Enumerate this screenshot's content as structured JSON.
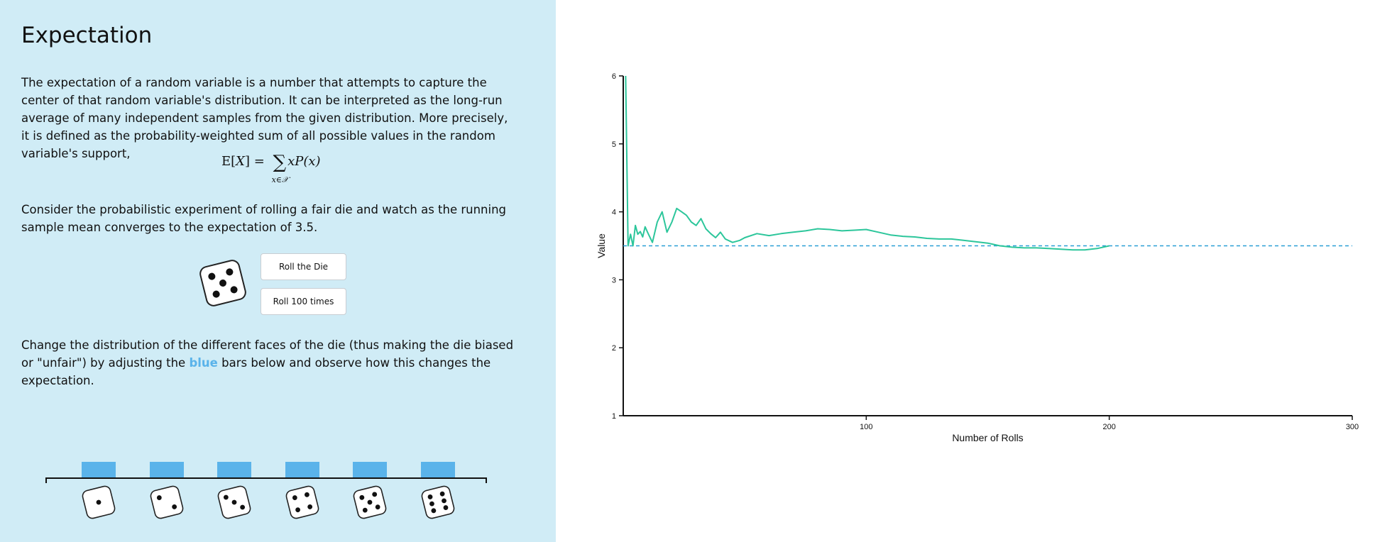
{
  "title": "Expectation",
  "intro": "The expectation of a random variable is a number that attempts to capture the center of that random variable's distribution. It can be interpreted as the long-run average of many independent samples from the given distribution. More precisely, it is defined as the probability-weighted sum of all possible values in the random variable's support,",
  "formula": {
    "lhs": "E[",
    "var": "X",
    "rhs_open": "] = ",
    "sum_symbol": "∑",
    "sum_sub": "x∈𝒳",
    "body": "xP(x)"
  },
  "consider": "Consider the probabilistic experiment of rolling a fair die and watch as the running sample mean converges to the expectation of 3.5.",
  "buttons": {
    "roll": "Roll the Die",
    "roll100": "Roll 100 times"
  },
  "change": {
    "before": "Change the distribution of the different faces of the die (thus making the die biased or \"unfair\") by adjusting the ",
    "blue": "blue",
    "after": " bars below and observe how this changes the expectation."
  },
  "probabilities": [
    0.1667,
    0.1667,
    0.1667,
    0.1667,
    0.1667,
    0.1667
  ],
  "faces": [
    1,
    2,
    3,
    4,
    5,
    6
  ],
  "big_die_face": 5,
  "colors": {
    "panel": "#d0ecf6",
    "bar": "#5ab3ea",
    "line": "#2cc69b",
    "expectation": "#2a9fd6"
  },
  "chart_data": {
    "type": "line",
    "xlabel": "Number of Rolls",
    "ylabel": "Value",
    "xlim": [
      0,
      300
    ],
    "ylim": [
      1,
      6
    ],
    "x_ticks": [
      100,
      200,
      300
    ],
    "y_ticks": [
      1,
      2,
      3,
      4,
      5,
      6
    ],
    "expectation": 3.5,
    "series": [
      {
        "x": [
          1,
          2,
          3,
          4,
          5,
          6,
          7,
          8,
          9,
          10,
          12,
          14,
          16,
          18,
          20,
          22,
          24,
          26,
          28,
          30,
          32,
          34,
          36,
          38,
          40,
          42,
          45,
          48,
          50,
          55,
          60,
          65,
          70,
          75,
          80,
          85,
          90,
          95,
          100,
          105,
          110,
          115,
          120,
          125,
          130,
          135,
          140,
          145,
          150,
          155,
          160,
          165,
          170,
          175,
          180,
          185,
          190,
          195,
          200
        ],
        "y": [
          6,
          3.5,
          3.67,
          3.5,
          3.8,
          3.67,
          3.71,
          3.63,
          3.78,
          3.7,
          3.55,
          3.85,
          4.0,
          3.7,
          3.85,
          4.05,
          4.0,
          3.95,
          3.85,
          3.8,
          3.9,
          3.75,
          3.68,
          3.62,
          3.7,
          3.6,
          3.55,
          3.58,
          3.62,
          3.68,
          3.65,
          3.68,
          3.7,
          3.72,
          3.75,
          3.74,
          3.72,
          3.73,
          3.74,
          3.7,
          3.66,
          3.64,
          3.63,
          3.61,
          3.6,
          3.6,
          3.58,
          3.56,
          3.54,
          3.5,
          3.48,
          3.47,
          3.47,
          3.46,
          3.45,
          3.44,
          3.44,
          3.46,
          3.5
        ]
      }
    ]
  }
}
